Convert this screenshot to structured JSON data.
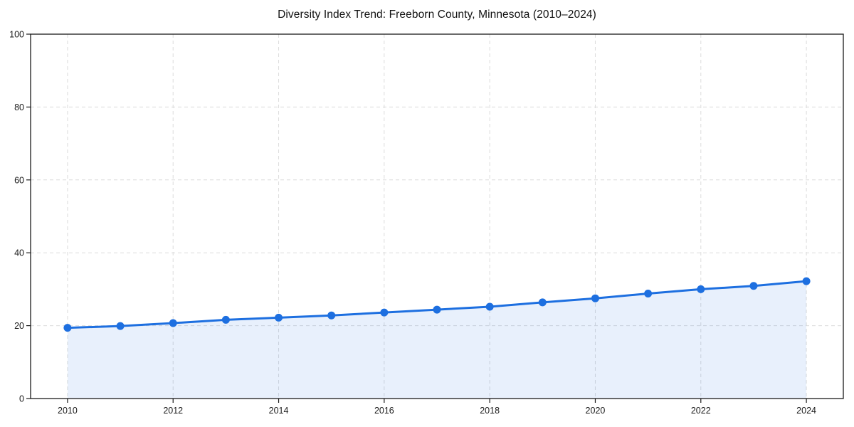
{
  "chart_data": {
    "type": "line",
    "title": "Diversity Index Trend: Freeborn County, Minnesota (2010–2024)",
    "x": [
      2010,
      2011,
      2012,
      2013,
      2014,
      2015,
      2016,
      2017,
      2018,
      2019,
      2020,
      2021,
      2022,
      2023,
      2024
    ],
    "values": [
      19.4,
      19.9,
      20.7,
      21.6,
      22.2,
      22.8,
      23.6,
      24.4,
      25.2,
      26.4,
      27.5,
      28.8,
      30.0,
      30.9,
      32.2
    ],
    "xlabel": "",
    "ylabel": "",
    "xlim": [
      2009.3,
      2024.7
    ],
    "ylim": [
      0,
      100
    ],
    "xticks": [
      2010,
      2012,
      2014,
      2016,
      2018,
      2020,
      2022,
      2024
    ],
    "yticks": [
      0,
      20,
      40,
      60,
      80,
      100
    ],
    "grid": true,
    "grid_style": "dashed",
    "legend_position": "none",
    "line_color": "#1d6fe0",
    "marker_color": "#1d6fe0",
    "fill_opacity": 0.1,
    "grid_color": "#dcdcdc",
    "axis_color": "#1a1a1a",
    "area": true,
    "marker": "circle"
  }
}
